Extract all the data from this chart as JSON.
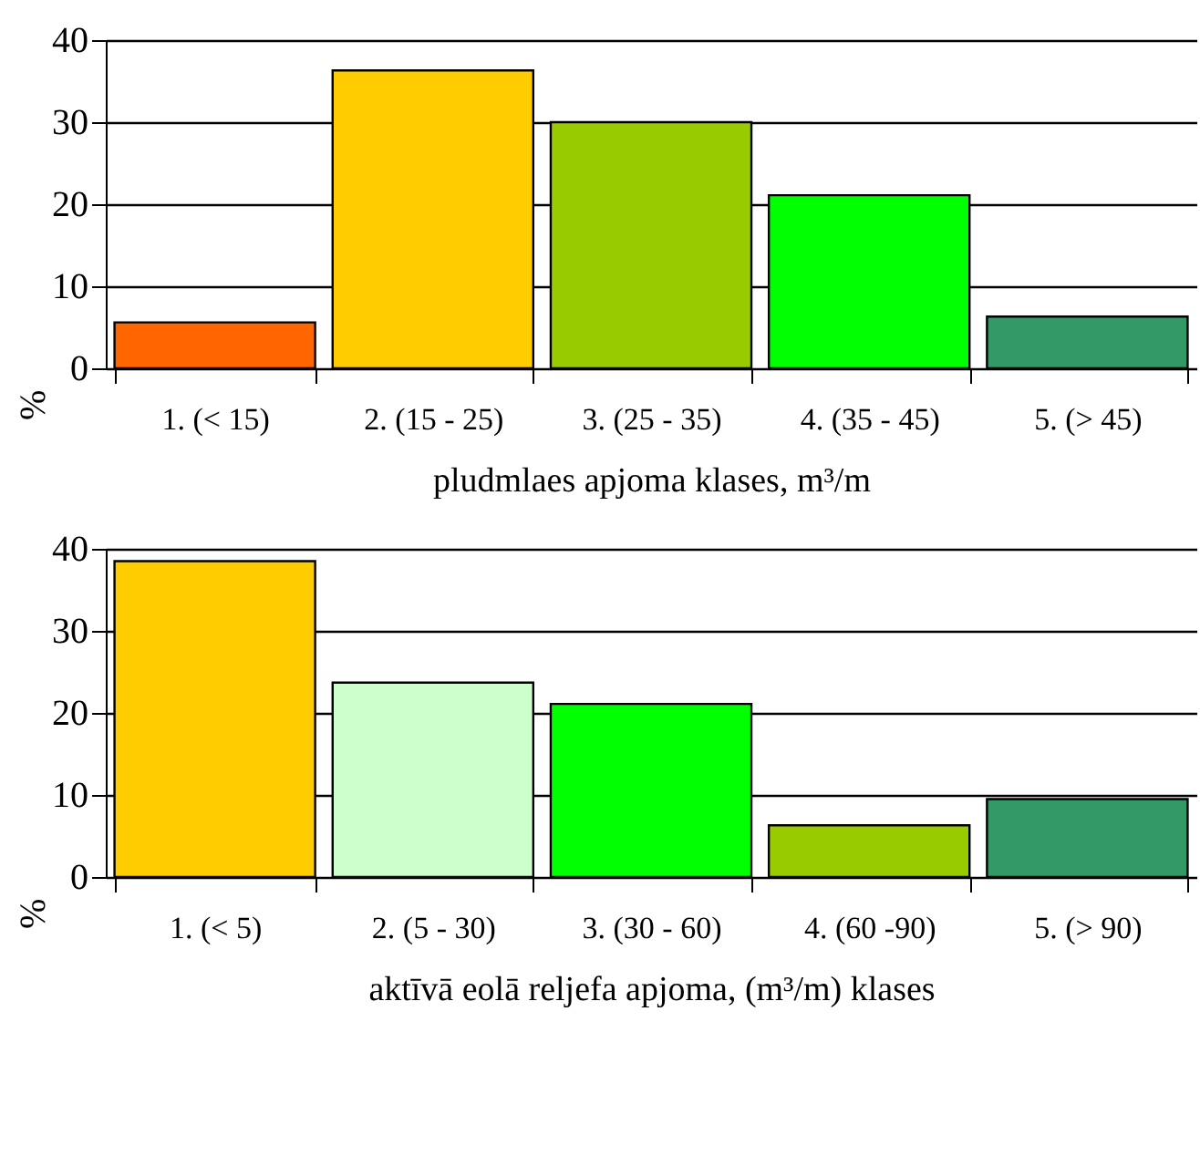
{
  "chart_data": [
    {
      "type": "bar",
      "xlabel": "pludmlaes apjoma klases, m³/m",
      "ylabel": "%",
      "categories": [
        "1. (< 15)",
        "2. (15 - 25)",
        "3. (25 - 35)",
        "4. (35 - 45)",
        "5. (> 45)"
      ],
      "values": [
        5.6,
        36.3,
        30.0,
        21.1,
        6.3
      ],
      "colors": [
        "#ff6600",
        "#ffcc00",
        "#99cc00",
        "#00ff00",
        "#339966"
      ],
      "ylim": [
        0,
        40
      ],
      "yticks": [
        0,
        10,
        20,
        30,
        40
      ],
      "grid": "y"
    },
    {
      "type": "bar",
      "xlabel": "aktīvā eolā reljefa apjoma, (m³/m) klases",
      "ylabel": "%",
      "categories": [
        "1. (< 5)",
        "2. (5 - 30)",
        "3. (30 - 60)",
        "4. (60 -90)",
        "5. (> 90)"
      ],
      "values": [
        38.5,
        23.7,
        21.1,
        6.3,
        9.5
      ],
      "colors": [
        "#ffcc00",
        "#ccffcc",
        "#00ff00",
        "#99cc00",
        "#339966"
      ],
      "ylim": [
        0,
        40
      ],
      "yticks": [
        0,
        10,
        20,
        30,
        40
      ],
      "grid": "y"
    }
  ]
}
